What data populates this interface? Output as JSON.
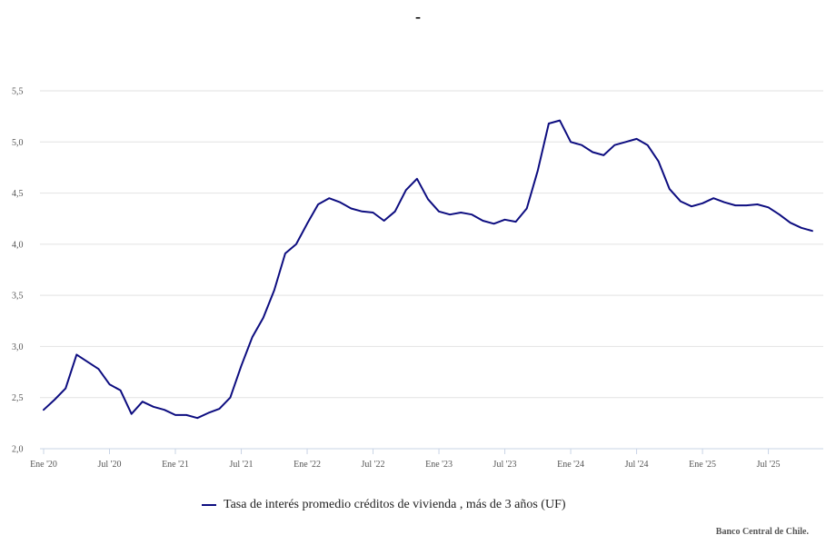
{
  "title": "-",
  "credit": "Banco Central de Chile.",
  "chart_data": {
    "type": "line",
    "title": "-",
    "xlabel": "",
    "ylabel": "",
    "ylim": [
      2.0,
      5.5
    ],
    "yticks": [
      "2,0",
      "2,5",
      "3,0",
      "3,5",
      "4,0",
      "4,5",
      "5,0",
      "5,5"
    ],
    "ytick_values": [
      2.0,
      2.5,
      3.0,
      3.5,
      4.0,
      4.5,
      5.0,
      5.5
    ],
    "xticks": [
      "Ene '20",
      "Jul '20",
      "Ene '21",
      "Jul '21",
      "Ene '22",
      "Jul '22",
      "Ene '23",
      "Jul '23",
      "Ene '24",
      "Jul '24",
      "Ene '25",
      "Jul '25"
    ],
    "xtick_months": [
      0,
      6,
      12,
      18,
      24,
      30,
      36,
      42,
      48,
      54,
      60,
      66
    ],
    "grid": true,
    "legend_position": "bottom",
    "series_color": "#0d0d80",
    "series": [
      {
        "name": "Tasa de interés promedio créditos de vivienda , más de 3 años (UF)",
        "x": [
          "2020-01",
          "2020-02",
          "2020-03",
          "2020-04",
          "2020-05",
          "2020-06",
          "2020-07",
          "2020-08",
          "2020-09",
          "2020-10",
          "2020-11",
          "2020-12",
          "2021-01",
          "2021-02",
          "2021-03",
          "2021-04",
          "2021-05",
          "2021-06",
          "2021-07",
          "2021-08",
          "2021-09",
          "2021-10",
          "2021-11",
          "2021-12",
          "2022-01",
          "2022-02",
          "2022-03",
          "2022-04",
          "2022-05",
          "2022-06",
          "2022-07",
          "2022-08",
          "2022-09",
          "2022-10",
          "2022-11",
          "2022-12",
          "2023-01",
          "2023-02",
          "2023-03",
          "2023-04",
          "2023-05",
          "2023-06",
          "2023-07",
          "2023-08",
          "2023-09",
          "2023-10",
          "2023-11",
          "2023-12",
          "2024-01",
          "2024-02",
          "2024-03",
          "2024-04",
          "2024-05",
          "2024-06",
          "2024-07",
          "2024-08",
          "2024-09",
          "2024-10",
          "2024-11",
          "2024-12",
          "2025-01",
          "2025-02",
          "2025-03",
          "2025-04",
          "2025-05",
          "2025-06",
          "2025-07",
          "2025-08",
          "2025-09",
          "2025-10",
          "2025-11"
        ],
        "values": [
          2.38,
          2.48,
          2.59,
          2.92,
          2.85,
          2.78,
          2.63,
          2.57,
          2.34,
          2.46,
          2.41,
          2.38,
          2.33,
          2.33,
          2.3,
          2.35,
          2.39,
          2.5,
          2.81,
          3.09,
          3.28,
          3.55,
          3.91,
          4.0,
          4.2,
          4.39,
          4.45,
          4.41,
          4.35,
          4.32,
          4.31,
          4.23,
          4.32,
          4.53,
          4.64,
          4.44,
          4.32,
          4.29,
          4.31,
          4.29,
          4.23,
          4.2,
          4.24,
          4.22,
          4.35,
          4.72,
          5.18,
          5.21,
          5.0,
          4.97,
          4.9,
          4.87,
          4.97,
          5.0,
          5.03,
          4.97,
          4.81,
          4.54,
          4.42,
          4.37,
          4.4,
          4.45,
          4.41,
          4.38,
          4.38,
          4.39,
          4.36,
          4.29,
          4.21,
          4.16,
          4.13
        ]
      }
    ]
  }
}
